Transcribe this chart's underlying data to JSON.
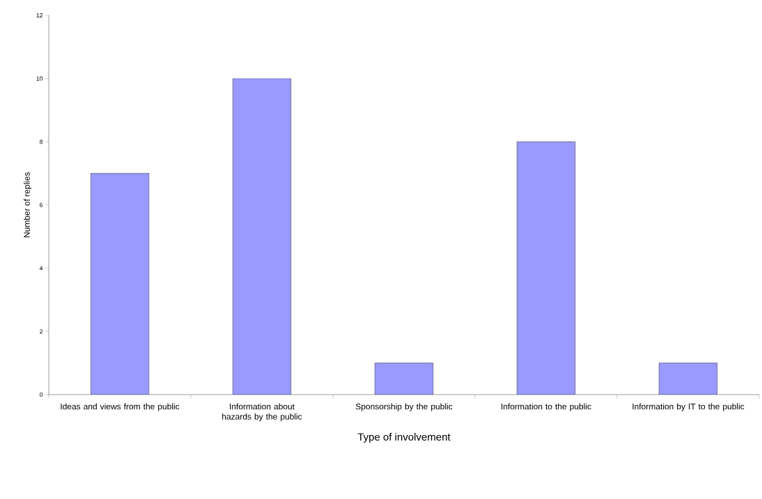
{
  "chart_data": {
    "type": "bar",
    "xlabel": "Type of involvement",
    "ylabel": "Number of replies",
    "categories": [
      "Ideas and views from the public",
      "Information about hazards by the public",
      "Sponsorship by the public",
      "Information to the public",
      "Information by IT to the public"
    ],
    "values": [
      7,
      10,
      1,
      8,
      1
    ],
    "color": "#9999ff",
    "ylim": [
      0,
      12
    ],
    "yticks": [
      0,
      2,
      4,
      6,
      8,
      10,
      12
    ]
  }
}
